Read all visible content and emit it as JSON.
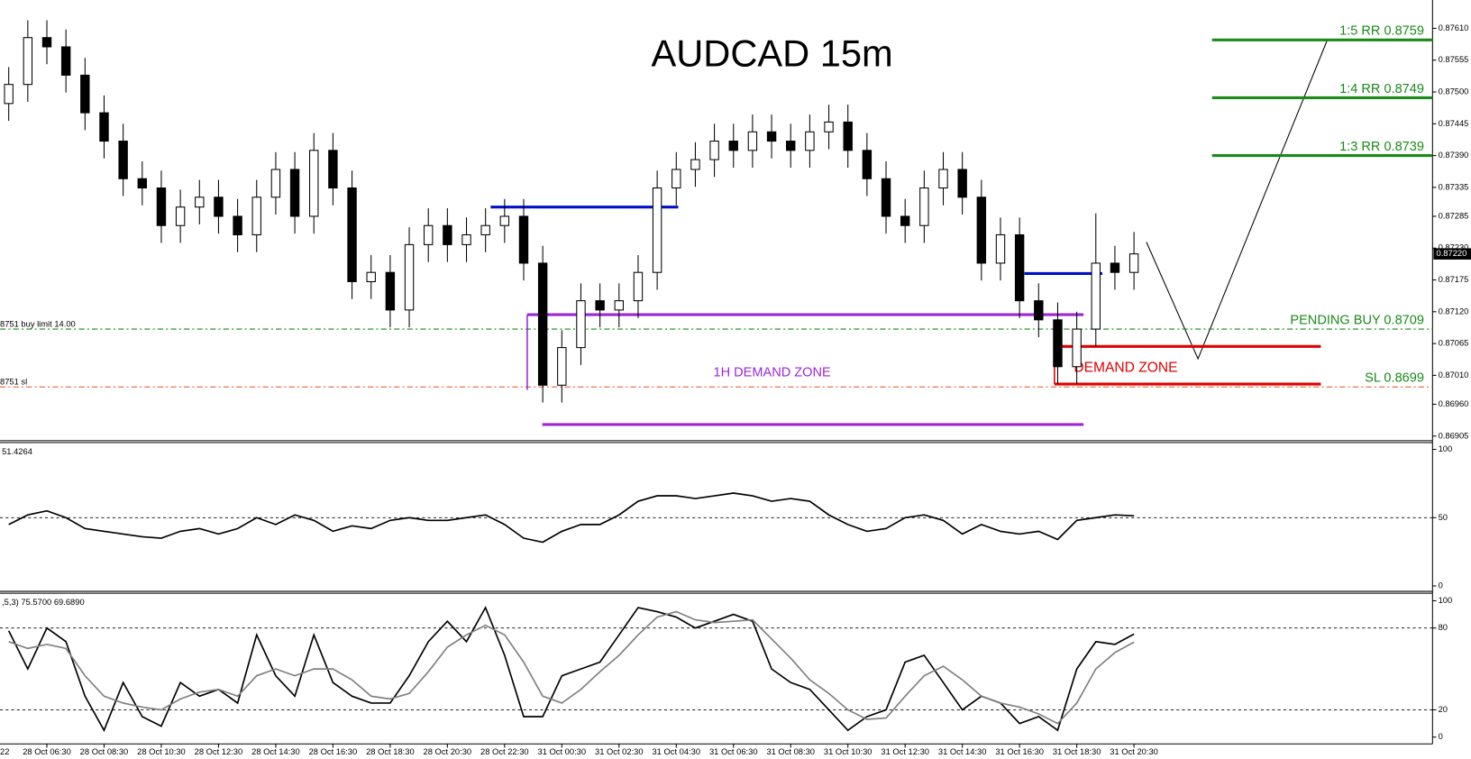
{
  "chart_data": [
    {
      "type": "candlestick",
      "title": "AUDCAD 15m",
      "categories": [
        null,
        null,
        "28 Oct 06:30",
        null,
        null,
        "28 Oct 08:30",
        null,
        null,
        "28 Oct 10:30",
        null,
        null,
        "28 Oct 12:30",
        null,
        null,
        "28 Oct 14:30",
        null,
        null,
        "28 Oct 16:30",
        null,
        null,
        "28 Oct 18:30",
        null,
        null,
        "28 Oct 20:30",
        null,
        null,
        "28 Oct 22:30",
        null,
        null,
        "31 Oct 00:30",
        null,
        null,
        "31 Oct 02:30",
        null,
        null,
        "31 Oct 04:30",
        null,
        null,
        "31 Oct 06:30",
        null,
        null,
        "31 Oct 08:30",
        null,
        null,
        "31 Oct 10:30",
        null,
        null,
        "31 Oct 12:30",
        null,
        null,
        "31 Oct 14:30",
        null,
        null,
        "31 Oct 16:30",
        null,
        null,
        "31 Oct 18:30",
        null,
        null,
        "31 Oct 20:30"
      ],
      "left_cut_label": "22",
      "open": [
        0.8748,
        0.87513,
        0.87594,
        0.87578,
        0.87529,
        0.87464,
        0.87415,
        0.8735,
        0.87334,
        0.87269,
        0.87301,
        0.87318,
        0.87285,
        0.87253,
        0.87318,
        0.87366,
        0.87285,
        0.87399,
        0.87334,
        0.87172,
        0.87188,
        0.87123,
        0.87236,
        0.87269,
        0.87236,
        0.87253,
        0.87269,
        0.87285,
        0.87204,
        0.86993,
        0.87058,
        0.87139,
        0.87123,
        0.87139,
        0.87188,
        0.87334,
        0.87366,
        0.87383,
        0.87415,
        0.87399,
        0.87431,
        0.87415,
        0.87399,
        0.87431,
        0.87448,
        0.87399,
        0.8735,
        0.87285,
        0.87269,
        0.87334,
        0.87366,
        0.87318,
        0.87204,
        0.87253,
        0.87139,
        0.87106,
        0.87025,
        0.8709,
        0.87204,
        0.87188
      ],
      "high": [
        0.87543,
        0.87624,
        0.87624,
        0.87608,
        0.87559,
        0.87494,
        0.87445,
        0.8738,
        0.87364,
        0.87331,
        0.87348,
        0.87348,
        0.87315,
        0.87348,
        0.87396,
        0.87396,
        0.87429,
        0.87429,
        0.87364,
        0.87218,
        0.87218,
        0.87266,
        0.87299,
        0.87299,
        0.87283,
        0.87299,
        0.87315,
        0.87315,
        0.87234,
        0.87088,
        0.87169,
        0.87169,
        0.87169,
        0.87218,
        0.87364,
        0.87396,
        0.87413,
        0.87445,
        0.87445,
        0.87461,
        0.87461,
        0.87445,
        0.87461,
        0.87478,
        0.87478,
        0.87429,
        0.8738,
        0.87315,
        0.87364,
        0.87396,
        0.87396,
        0.87348,
        0.87283,
        0.87283,
        0.87169,
        0.87136,
        0.8712,
        0.8729,
        0.87234,
        0.87258
      ],
      "low": [
        0.8745,
        0.87483,
        0.87548,
        0.87499,
        0.87434,
        0.87385,
        0.8732,
        0.87304,
        0.87239,
        0.87239,
        0.87271,
        0.87255,
        0.87223,
        0.87223,
        0.87288,
        0.87255,
        0.87255,
        0.87304,
        0.87142,
        0.87142,
        0.87093,
        0.87093,
        0.87206,
        0.87206,
        0.87206,
        0.87223,
        0.87239,
        0.87174,
        0.86963,
        0.86963,
        0.87028,
        0.87093,
        0.87093,
        0.87109,
        0.87158,
        0.87304,
        0.87336,
        0.87353,
        0.87369,
        0.87369,
        0.87385,
        0.87369,
        0.87369,
        0.87401,
        0.87369,
        0.8732,
        0.87255,
        0.87239,
        0.87239,
        0.87304,
        0.87288,
        0.87174,
        0.87174,
        0.87109,
        0.87076,
        0.86995,
        0.86995,
        0.8706,
        0.87158,
        0.87158
      ],
      "close": [
        0.87513,
        0.87594,
        0.87578,
        0.87529,
        0.87464,
        0.87415,
        0.8735,
        0.87334,
        0.87269,
        0.87301,
        0.87318,
        0.87285,
        0.87253,
        0.87318,
        0.87366,
        0.87285,
        0.87399,
        0.87334,
        0.87172,
        0.87188,
        0.87123,
        0.87236,
        0.87269,
        0.87236,
        0.87253,
        0.87269,
        0.87285,
        0.87204,
        0.86993,
        0.87058,
        0.87139,
        0.87123,
        0.87139,
        0.87188,
        0.87334,
        0.87366,
        0.87383,
        0.87415,
        0.87399,
        0.87431,
        0.87415,
        0.87399,
        0.87431,
        0.87448,
        0.87399,
        0.8735,
        0.87285,
        0.87269,
        0.87334,
        0.87366,
        0.87318,
        0.87204,
        0.87253,
        0.87139,
        0.87106,
        0.87025,
        0.8709,
        0.87204,
        0.87188,
        0.8722
      ],
      "ylim": [
        0.86897,
        0.87659
      ],
      "yticks": [
        {
          "value": 0.8761,
          "label": "0.87610"
        },
        0.87555,
        {
          "value": 0.875,
          "label": "0.87500"
        },
        0.87445,
        {
          "value": 0.8739,
          "label": "0.87390"
        },
        0.87335,
        0.87285,
        {
          "value": 0.8723,
          "label": "0.87230"
        },
        0.87175,
        {
          "value": 0.8712,
          "label": "0.87120"
        },
        0.87065,
        {
          "value": 0.8701,
          "label": "0.87010"
        },
        {
          "value": 0.8696,
          "label": "0.86960"
        },
        0.86905
      ],
      "price_tag": {
        "value": 0.8722,
        "label": "0.87220"
      },
      "levels": [
        {
          "label": "1:5 RR 0.8759",
          "price": 0.8759,
          "color": "#1a8a1a",
          "style": "solid"
        },
        {
          "label": "1:4 RR 0.8749",
          "price": 0.8749,
          "color": "#1a8a1a",
          "style": "solid"
        },
        {
          "label": "1:3 RR 0.8739",
          "price": 0.8739,
          "color": "#1a8a1a",
          "style": "solid"
        },
        {
          "label": "PENDING BUY 0.8709",
          "price": 0.8709,
          "color": "#1a8a1a",
          "style": "dashed",
          "order_label": "8751 buy limit 14.00"
        },
        {
          "label": "SL 0.8699",
          "price": 0.8699,
          "color": "#e8501e",
          "label_color": "#1a8a1a",
          "style": "dashed",
          "order_label": "8751 sl"
        }
      ],
      "blue_lines": [
        0.87301,
        0.87186
      ],
      "zones": [
        {
          "label": "1H DEMAND ZONE",
          "top": 0.87115,
          "bottom": 0.86925,
          "color": "#9b27d6"
        },
        {
          "label": "DEMAND ZONE",
          "top": 0.8706,
          "bottom": 0.86995,
          "color": "#e00000"
        }
      ]
    },
    {
      "type": "line",
      "label": "51.4264",
      "ylim": [
        -4,
        105
      ],
      "yticks": [
        100,
        50,
        0
      ],
      "dashed": [
        50
      ],
      "series": [
        {
          "color": "#000000",
          "values": [
            45,
            52,
            55,
            50,
            42,
            40,
            38,
            36,
            35,
            40,
            42,
            38,
            42,
            50,
            45,
            52,
            48,
            40,
            44,
            42,
            48,
            50,
            48,
            48,
            50,
            52,
            45,
            35,
            32,
            40,
            45,
            45,
            52,
            62,
            66,
            66,
            64,
            66,
            68,
            66,
            62,
            64,
            62,
            52,
            45,
            40,
            42,
            50,
            52,
            48,
            38,
            45,
            40,
            38,
            40,
            34,
            48,
            50,
            52,
            51.4264
          ]
        }
      ]
    },
    {
      "type": "line",
      "label": ",5,3) 75.5700 69.6890",
      "ylim": [
        -5,
        105.5
      ],
      "yticks": [
        100,
        80,
        20,
        0
      ],
      "dashed": [
        80,
        20
      ],
      "series": [
        {
          "color": "#000000",
          "values": [
            78,
            50,
            80,
            70,
            30,
            5,
            40,
            15,
            8,
            40,
            30,
            35,
            25,
            75,
            45,
            30,
            75,
            40,
            30,
            25,
            25,
            45,
            70,
            85,
            70,
            95,
            60,
            15,
            15,
            45,
            50,
            55,
            75,
            95,
            92,
            88,
            80,
            85,
            90,
            85,
            50,
            40,
            35,
            20,
            5,
            15,
            20,
            55,
            60,
            40,
            20,
            30,
            25,
            10,
            15,
            5,
            50,
            70,
            68,
            75.57
          ]
        },
        {
          "color": "#808080",
          "values": [
            70,
            65,
            68,
            65,
            45,
            30,
            25,
            22,
            20,
            28,
            33,
            35,
            30,
            45,
            50,
            45,
            50,
            50,
            42,
            30,
            28,
            32,
            48,
            66,
            75,
            82,
            75,
            55,
            30,
            25,
            35,
            48,
            60,
            75,
            88,
            92,
            86,
            84,
            85,
            86,
            72,
            58,
            42,
            32,
            20,
            13,
            14,
            30,
            45,
            52,
            42,
            30,
            25,
            22,
            17,
            10,
            25,
            50,
            62,
            69.689
          ]
        }
      ]
    }
  ]
}
